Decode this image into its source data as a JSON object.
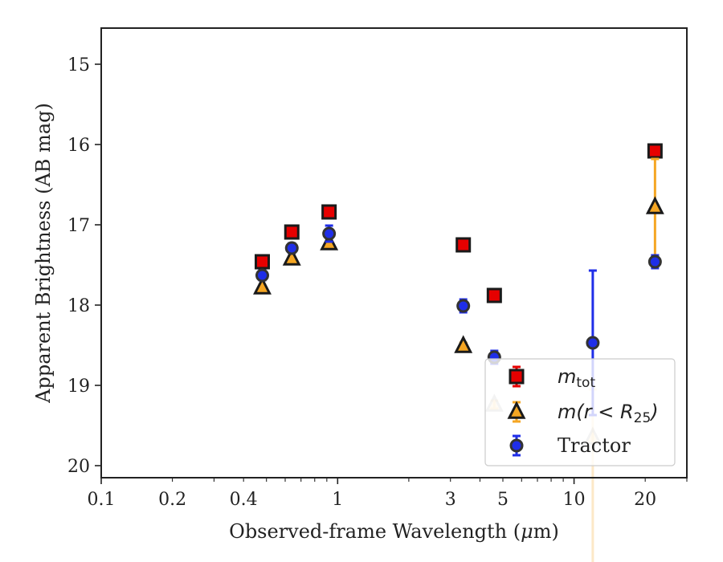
{
  "chart_data": {
    "type": "scatter",
    "xlabel": "Observed-frame Wavelength (μm)",
    "xlabel_parts": {
      "pre": "Observed-frame Wavelength (",
      "mu": "μ",
      "unit": "m)"
    },
    "ylabel": "Apparent Brightness (AB mag)",
    "x_scale": "log",
    "xlim": [
      0.1,
      30
    ],
    "ylim": [
      20.15,
      14.55
    ],
    "y_inverted": true,
    "grid": false,
    "legend_position": "lower-right",
    "x_ticks": [
      {
        "value": 0.1,
        "label": "0.1"
      },
      {
        "value": 0.2,
        "label": "0.2"
      },
      {
        "value": 0.4,
        "label": "0.4"
      },
      {
        "value": 1,
        "label": "1"
      },
      {
        "value": 3,
        "label": "3"
      },
      {
        "value": 5,
        "label": "5"
      },
      {
        "value": 10,
        "label": "10"
      },
      {
        "value": 20,
        "label": "20"
      }
    ],
    "y_ticks": [
      {
        "value": 15,
        "label": "15"
      },
      {
        "value": 16,
        "label": "16"
      },
      {
        "value": 17,
        "label": "17"
      },
      {
        "value": 18,
        "label": "18"
      },
      {
        "value": 19,
        "label": "19"
      },
      {
        "value": 20,
        "label": "20"
      }
    ],
    "series": [
      {
        "key": "mtot",
        "legend_main": "m",
        "legend_sub": "tot",
        "marker": "square",
        "color": "#e60000",
        "edgecolor": "#1a1a1a",
        "errcolor": "#e60000",
        "points": [
          {
            "x": 0.48,
            "y": 17.46,
            "err": 0.05
          },
          {
            "x": 0.64,
            "y": 17.09,
            "err": 0.05
          },
          {
            "x": 0.92,
            "y": 16.84,
            "err": 0.05
          },
          {
            "x": 3.4,
            "y": 17.25,
            "err": 0.07
          },
          {
            "x": 4.6,
            "y": 17.88,
            "err": 0.06
          },
          {
            "x": 22,
            "y": 16.08,
            "err": 0.06
          }
        ]
      },
      {
        "key": "mr25",
        "legend_main": "m(r < R",
        "legend_sub": "25",
        "legend_end": ")",
        "marker": "triangle",
        "color": "#f5a623",
        "edgecolor": "#1a1a1a",
        "errcolor": "#f5a623",
        "points": [
          {
            "x": 0.48,
            "y": 17.78,
            "err": 0.03
          },
          {
            "x": 0.64,
            "y": 17.42,
            "err": 0.03
          },
          {
            "x": 0.92,
            "y": 17.23,
            "err": 0.03
          },
          {
            "x": 3.4,
            "y": 18.51,
            "err": 0.04
          },
          {
            "x": 4.6,
            "y": 19.24,
            "err": 0.05,
            "faded": true
          },
          {
            "x": 12,
            "y": 19.65,
            "err_low": 1.8,
            "err_high": 0.6,
            "faded": true
          },
          {
            "x": 22,
            "y": 16.78,
            "err": 0.6
          }
        ]
      },
      {
        "key": "tractor",
        "legend_main": "Tractor",
        "marker": "circle",
        "color": "#1f2ee8",
        "edgecolor": "#333333",
        "errcolor": "#1f2ee8",
        "points": [
          {
            "x": 0.48,
            "y": 17.63,
            "err": 0.06
          },
          {
            "x": 0.64,
            "y": 17.29,
            "err": 0.06
          },
          {
            "x": 0.92,
            "y": 17.11,
            "err": 0.1
          },
          {
            "x": 3.4,
            "y": 18.01,
            "err": 0.08
          },
          {
            "x": 4.6,
            "y": 18.65,
            "err": 0.08
          },
          {
            "x": 12,
            "y": 18.47,
            "err": 0.9
          },
          {
            "x": 22,
            "y": 17.46,
            "err": 0.08
          }
        ]
      }
    ]
  }
}
